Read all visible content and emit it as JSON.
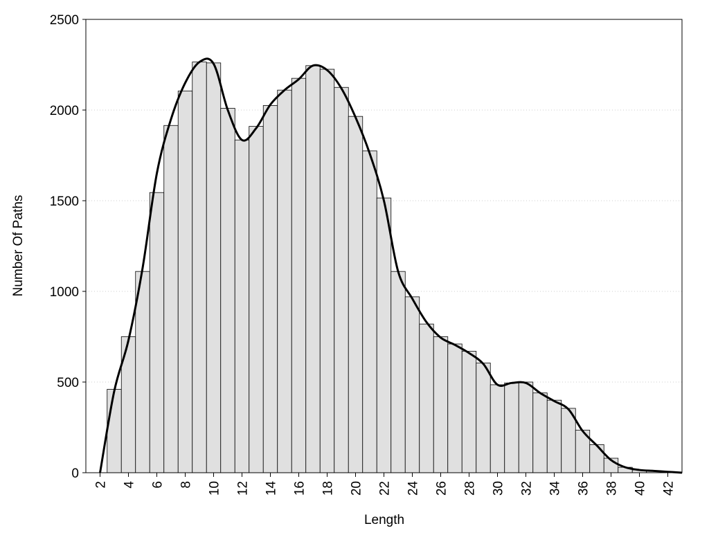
{
  "chart_data": {
    "type": "histogram",
    "x_label": "Length",
    "y_label": "Number Of Paths",
    "bins": [
      2.5,
      3.5,
      4.5,
      5.5,
      6.5,
      7.5,
      8.5,
      9.5,
      10.5,
      11.5,
      12.5,
      13.5,
      14.5,
      15.5,
      16.5,
      17.5,
      18.5,
      19.5,
      20.5,
      21.5,
      22.5,
      23.5,
      24.5,
      25.5,
      26.5,
      27.5,
      28.5,
      29.5,
      30.5,
      31.5,
      32.5,
      33.5,
      34.5,
      35.5,
      36.5,
      37.5,
      38.5,
      39.5,
      40.5,
      41.5,
      42.5
    ],
    "values": [
      460,
      750,
      1110,
      1545,
      1915,
      2105,
      2265,
      2260,
      2010,
      1835,
      1910,
      2025,
      2110,
      2175,
      2245,
      2225,
      2125,
      1965,
      1775,
      1515,
      1110,
      970,
      820,
      750,
      710,
      670,
      605,
      485,
      495,
      500,
      440,
      400,
      355,
      235,
      155,
      80,
      30,
      15,
      10,
      5
    ],
    "color": "#e0e0e0",
    "edge_color": "#000000",
    "curve": {
      "x": [
        2,
        3,
        4,
        5,
        6,
        7,
        8,
        9,
        10,
        11,
        12,
        13,
        14,
        15,
        16,
        17,
        18,
        19,
        20,
        21,
        22,
        23,
        24,
        25,
        26,
        27,
        28,
        29,
        30,
        31,
        32,
        33,
        34,
        35,
        36,
        37,
        38,
        39,
        40,
        41,
        42,
        43
      ],
      "values": [
        0,
        450,
        730,
        1130,
        1650,
        1950,
        2150,
        2265,
        2255,
        2000,
        1835,
        1900,
        2030,
        2110,
        2170,
        2245,
        2220,
        2120,
        1960,
        1760,
        1500,
        1110,
        960,
        830,
        745,
        705,
        660,
        600,
        485,
        495,
        495,
        440,
        395,
        350,
        230,
        150,
        70,
        30,
        15,
        10,
        5,
        0
      ],
      "color": "#000000",
      "smooth": true
    },
    "xlim": [
      1,
      43
    ],
    "xticks": [
      2,
      4,
      6,
      8,
      10,
      12,
      14,
      16,
      18,
      20,
      22,
      24,
      26,
      28,
      30,
      32,
      34,
      36,
      38,
      40,
      42
    ],
    "ylim": [
      0,
      2500
    ],
    "yticks": [
      0,
      500,
      1000,
      1500,
      2000,
      2500
    ],
    "grid": true
  }
}
